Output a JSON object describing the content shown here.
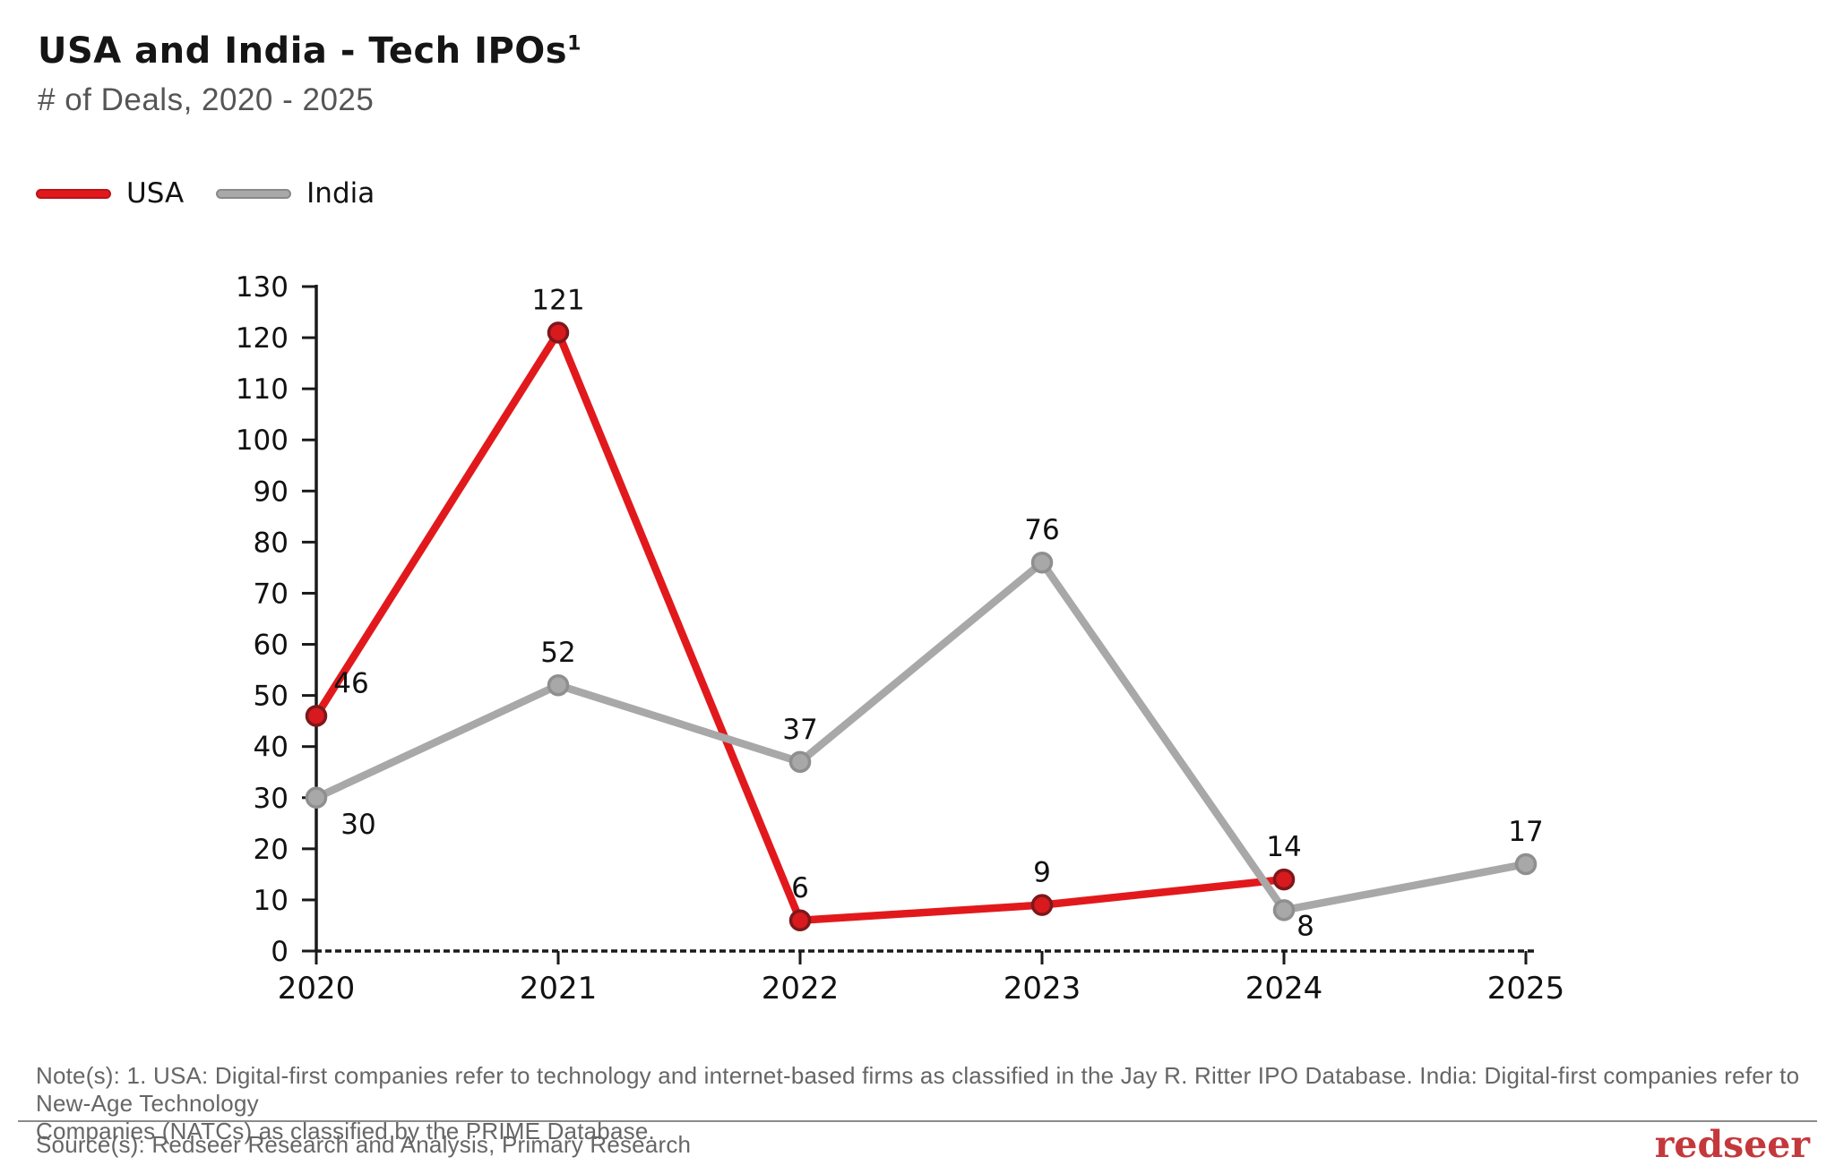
{
  "header": {
    "title": "USA and India - Tech IPOs",
    "title_superscript": "1",
    "subtitle": "# of Deals, 2020 - 2025"
  },
  "legend": [
    {
      "label": "USA",
      "color": "#e2191c"
    },
    {
      "label": "India",
      "color": "#a8a8a8"
    }
  ],
  "chart_data": {
    "type": "line",
    "categories": [
      "2020",
      "2021",
      "2022",
      "2023",
      "2024",
      "2025"
    ],
    "series": [
      {
        "name": "USA",
        "color": "#e2191c",
        "marker_fill": "#d8191d",
        "marker_stroke": "#7c181b",
        "values": [
          46,
          121,
          6,
          9,
          14,
          null
        ]
      },
      {
        "name": "India",
        "color": "#a8a8a8",
        "marker_fill": "#a8a8a8",
        "marker_stroke": "#8f8f8f",
        "values": [
          30,
          52,
          37,
          76,
          8,
          17
        ]
      }
    ],
    "title": "USA and India - Tech IPOs",
    "subtitle": "# of Deals, 2020 - 2025",
    "xlabel": "",
    "ylabel": "# of Deals",
    "ylim": [
      0,
      130
    ],
    "ytick_step": 10,
    "grid": false,
    "legend_position": "top-left",
    "axis_color": "#1a1a1a",
    "label_color": "#111111"
  },
  "footer": {
    "notes": [
      "Note(s): 1. USA: Digital-first companies refer to technology and internet-based firms as classified in the Jay R. Ritter IPO Database. India: Digital-first companies refer to New-Age Technology",
      "Companies (NATCs) as classified by the PRIME Database."
    ],
    "source": "Source(s): Redseer Research and Analysis, Primary Research",
    "logo": "redseer",
    "logo_color": "#c4383c"
  }
}
